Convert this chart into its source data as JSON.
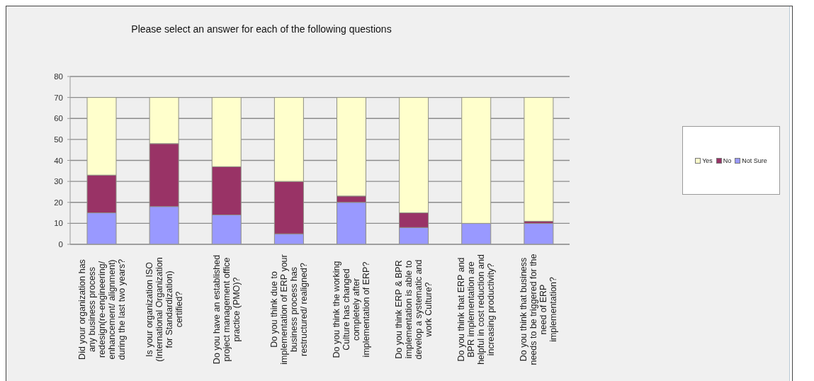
{
  "chart_data": {
    "type": "bar",
    "title": "Please select an answer for each of the following questions",
    "categories": [
      "Did your organization has any business process redesign(re-engineering/ enhancement/ alignment) during the last two years?",
      "Is your organization ISO (International Organization for Standardization) certified?",
      "Do you have an established project management office practice (PMO)?",
      "Do you think due to implementation of ERP your business process has restructured/ realigned?",
      "Do you think the working Culture has changed completely after implementation of ERP?",
      "Do you think ERP & BPR implementation is able to develop a systematic and work Culture?",
      "Do you think that ERP and BPR implementation are helpful in cost reduction and increasing productivity?",
      "Do you think that business needs to be triggered for the need of ERP implementation?"
    ],
    "stacked": true,
    "series": [
      {
        "name": "Not Sure",
        "color": "#9999ff",
        "values": [
          15,
          18,
          14,
          5,
          20,
          8,
          10,
          10
        ]
      },
      {
        "name": "No",
        "color": "#993366",
        "values": [
          18,
          30,
          23,
          25,
          3,
          7,
          0,
          1
        ]
      },
      {
        "name": "Yes",
        "color": "#ffffcc",
        "values": [
          37,
          22,
          33,
          40,
          47,
          55,
          60,
          59
        ]
      }
    ],
    "ylim": [
      0,
      80
    ],
    "yticks": [
      0,
      10,
      20,
      30,
      40,
      50,
      60,
      70,
      80
    ],
    "grid": "y",
    "legend": "right"
  }
}
